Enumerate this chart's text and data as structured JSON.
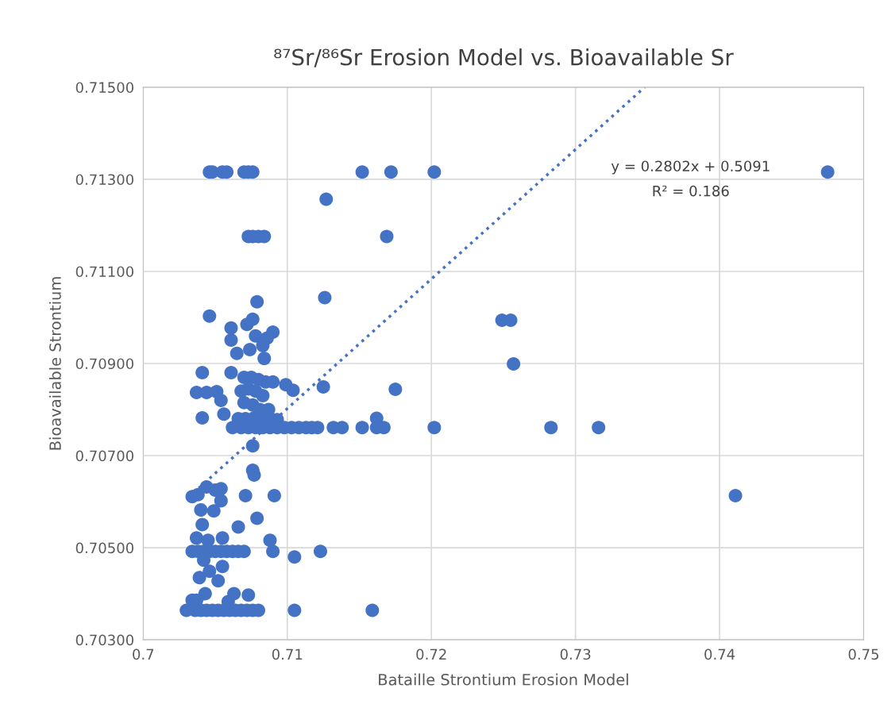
{
  "chart_data": {
    "type": "scatter",
    "title": "⁸⁷Sr/⁸⁶Sr Erosion Model vs. Bioavailable Sr",
    "xlabel": "Bataille Strontium Erosion Model",
    "ylabel": "Bioavailable Strontium",
    "annotations": [
      "y = 0.2802x + 0.5091",
      "R² = 0.186"
    ],
    "xlim": [
      0.7,
      0.75
    ],
    "xticks": [
      0.7,
      0.71,
      0.72,
      0.73,
      0.74,
      0.75
    ],
    "ylim": [
      0.703,
      0.715
    ],
    "yticks": [
      {
        "value": 0.703,
        "label": "0.70300"
      },
      {
        "value": 0.705,
        "label": "0.70500"
      },
      {
        "value": 0.707,
        "label": "0.70700"
      },
      {
        "value": 0.709,
        "label": "0.70900"
      },
      {
        "value": 0.711,
        "label": "0.71100"
      },
      {
        "value": 0.713,
        "label": "0.71300"
      },
      {
        "value": 0.715,
        "label": "0.71500"
      }
    ],
    "grid": true,
    "series": [
      {
        "marker": "circle",
        "color": "#4472c4",
        "x": [
          0.7046,
          0.7048,
          0.7055,
          0.7058,
          0.707,
          0.7073,
          0.7076,
          0.7152,
          0.7172,
          0.7202,
          0.7475,
          0.7073,
          0.7076,
          0.708,
          0.7084,
          0.7169,
          0.7127,
          0.7126,
          0.7249,
          0.7255,
          0.7257,
          0.7175,
          0.7125,
          0.7079,
          0.7046,
          0.7076,
          0.7061,
          0.709,
          0.7061,
          0.7065,
          0.7083,
          0.7084,
          0.7074,
          0.7072,
          0.7078,
          0.7086,
          0.7041,
          0.7061,
          0.7037,
          0.7044,
          0.7051,
          0.7054,
          0.7041,
          0.7056,
          0.7104,
          0.7099,
          0.707,
          0.7075,
          0.708,
          0.7085,
          0.709,
          0.7068,
          0.7073,
          0.7078,
          0.7083,
          0.707,
          0.7076,
          0.7081,
          0.7087,
          0.7066,
          0.7071,
          0.7077,
          0.7083,
          0.7088,
          0.7093,
          0.7076,
          0.7062,
          0.7068,
          0.7073,
          0.7078,
          0.7083,
          0.7088,
          0.7093,
          0.7098,
          0.7103,
          0.7108,
          0.7113,
          0.7117,
          0.7121,
          0.7132,
          0.7138,
          0.7152,
          0.7162,
          0.7167,
          0.7202,
          0.7283,
          0.7316,
          0.7162,
          0.7411,
          0.7076,
          0.7077,
          0.7044,
          0.7054,
          0.705,
          0.7034,
          0.7038,
          0.7054,
          0.7071,
          0.7091,
          0.704,
          0.7049,
          0.7079,
          0.7041,
          0.7066,
          0.7055,
          0.7037,
          0.7045,
          0.7088,
          0.7034,
          0.7038,
          0.7042,
          0.7046,
          0.705,
          0.7054,
          0.7058,
          0.7062,
          0.7066,
          0.707,
          0.709,
          0.7123,
          0.7105,
          0.7042,
          0.7055,
          0.7046,
          0.7039,
          0.7052,
          0.7043,
          0.7034,
          0.7063,
          0.7073,
          0.7059,
          0.7037,
          0.703,
          0.7036,
          0.704,
          0.7044,
          0.7048,
          0.7052,
          0.7056,
          0.706,
          0.7064,
          0.7068,
          0.7072,
          0.7076,
          0.708,
          0.7105,
          0.7159
        ],
        "values": [
          0.71316,
          0.71316,
          0.71316,
          0.71316,
          0.71316,
          0.71316,
          0.71316,
          0.71316,
          0.71316,
          0.71316,
          0.71316,
          0.71176,
          0.71176,
          0.71176,
          0.71176,
          0.71176,
          0.71257,
          0.71043,
          0.70994,
          0.70994,
          0.70899,
          0.70844,
          0.70849,
          0.71034,
          0.71003,
          0.70996,
          0.70977,
          0.70968,
          0.70951,
          0.70922,
          0.70939,
          0.70911,
          0.7093,
          0.70985,
          0.7096,
          0.70955,
          0.7088,
          0.7088,
          0.70837,
          0.70837,
          0.70839,
          0.7082,
          0.70782,
          0.7079,
          0.70842,
          0.70854,
          0.7087,
          0.7087,
          0.70865,
          0.7086,
          0.7086,
          0.7084,
          0.70845,
          0.7084,
          0.7083,
          0.70815,
          0.7081,
          0.708,
          0.708,
          0.7078,
          0.7078,
          0.70782,
          0.70775,
          0.7078,
          0.70778,
          0.70721,
          0.70761,
          0.70761,
          0.70761,
          0.70761,
          0.70761,
          0.70761,
          0.70761,
          0.70761,
          0.70761,
          0.70761,
          0.70761,
          0.70761,
          0.70761,
          0.70761,
          0.70761,
          0.70761,
          0.70761,
          0.70761,
          0.70761,
          0.70761,
          0.70761,
          0.70781,
          0.70613,
          0.70668,
          0.70658,
          0.70632,
          0.70628,
          0.70625,
          0.70611,
          0.70615,
          0.70602,
          0.70613,
          0.70613,
          0.70582,
          0.7058,
          0.70564,
          0.7055,
          0.70545,
          0.70521,
          0.70521,
          0.70516,
          0.70516,
          0.70492,
          0.70492,
          0.70492,
          0.70492,
          0.70492,
          0.70492,
          0.70492,
          0.70492,
          0.70492,
          0.70492,
          0.70492,
          0.70492,
          0.7048,
          0.70473,
          0.70459,
          0.70449,
          0.70435,
          0.70428,
          0.704,
          0.70386,
          0.704,
          0.70397,
          0.70383,
          0.70386,
          0.70364,
          0.70364,
          0.70364,
          0.70364,
          0.70364,
          0.70364,
          0.70364,
          0.70364,
          0.70364,
          0.70364,
          0.70364,
          0.70364,
          0.70364,
          0.70364,
          0.70364
        ]
      },
      {
        "type": "line",
        "color": "#4472c4",
        "line_style": "dotted",
        "marker": "none",
        "x": [
          0.7031,
          0.7348
        ],
        "values": [
          0.70608,
          0.715
        ]
      }
    ]
  }
}
